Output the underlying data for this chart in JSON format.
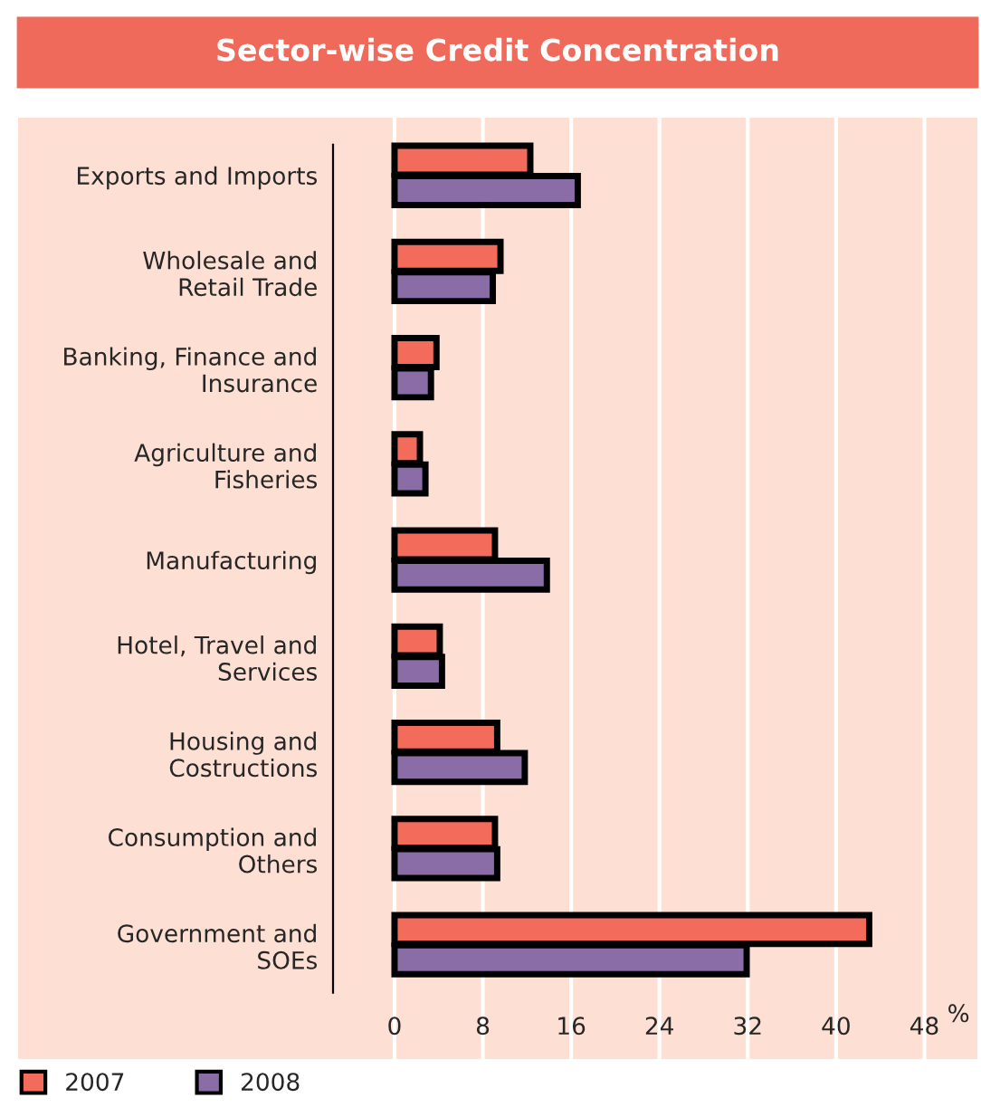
{
  "chart_data": {
    "type": "bar",
    "orientation": "horizontal",
    "title": "Sector-wise Credit Concentration",
    "categories": [
      "Exports and Imports",
      "Wholesale and\nRetail Trade",
      "Banking, Finance and\nInsurance",
      "Agriculture and\nFisheries",
      "Manufacturing",
      "Hotel, Travel and\nServices",
      "Housing and\nCostructions",
      "Consumption and\nOthers",
      "Government and\nSOEs"
    ],
    "series": [
      {
        "name": "2007",
        "color": "#f26b5b",
        "values": [
          12.3,
          9.6,
          3.8,
          2.3,
          9.1,
          4.1,
          9.3,
          9.1,
          43.0
        ]
      },
      {
        "name": "2008",
        "color": "#8a6ca6",
        "values": [
          16.6,
          8.9,
          3.3,
          2.8,
          13.8,
          4.3,
          11.8,
          9.3,
          31.9
        ]
      }
    ],
    "xlim": [
      -34.1,
      52.8
    ],
    "xticks": [
      0,
      8,
      16,
      24,
      32,
      40,
      48
    ],
    "annotations": [
      "%"
    ],
    "grid": "x",
    "legend": "bottom left"
  }
}
